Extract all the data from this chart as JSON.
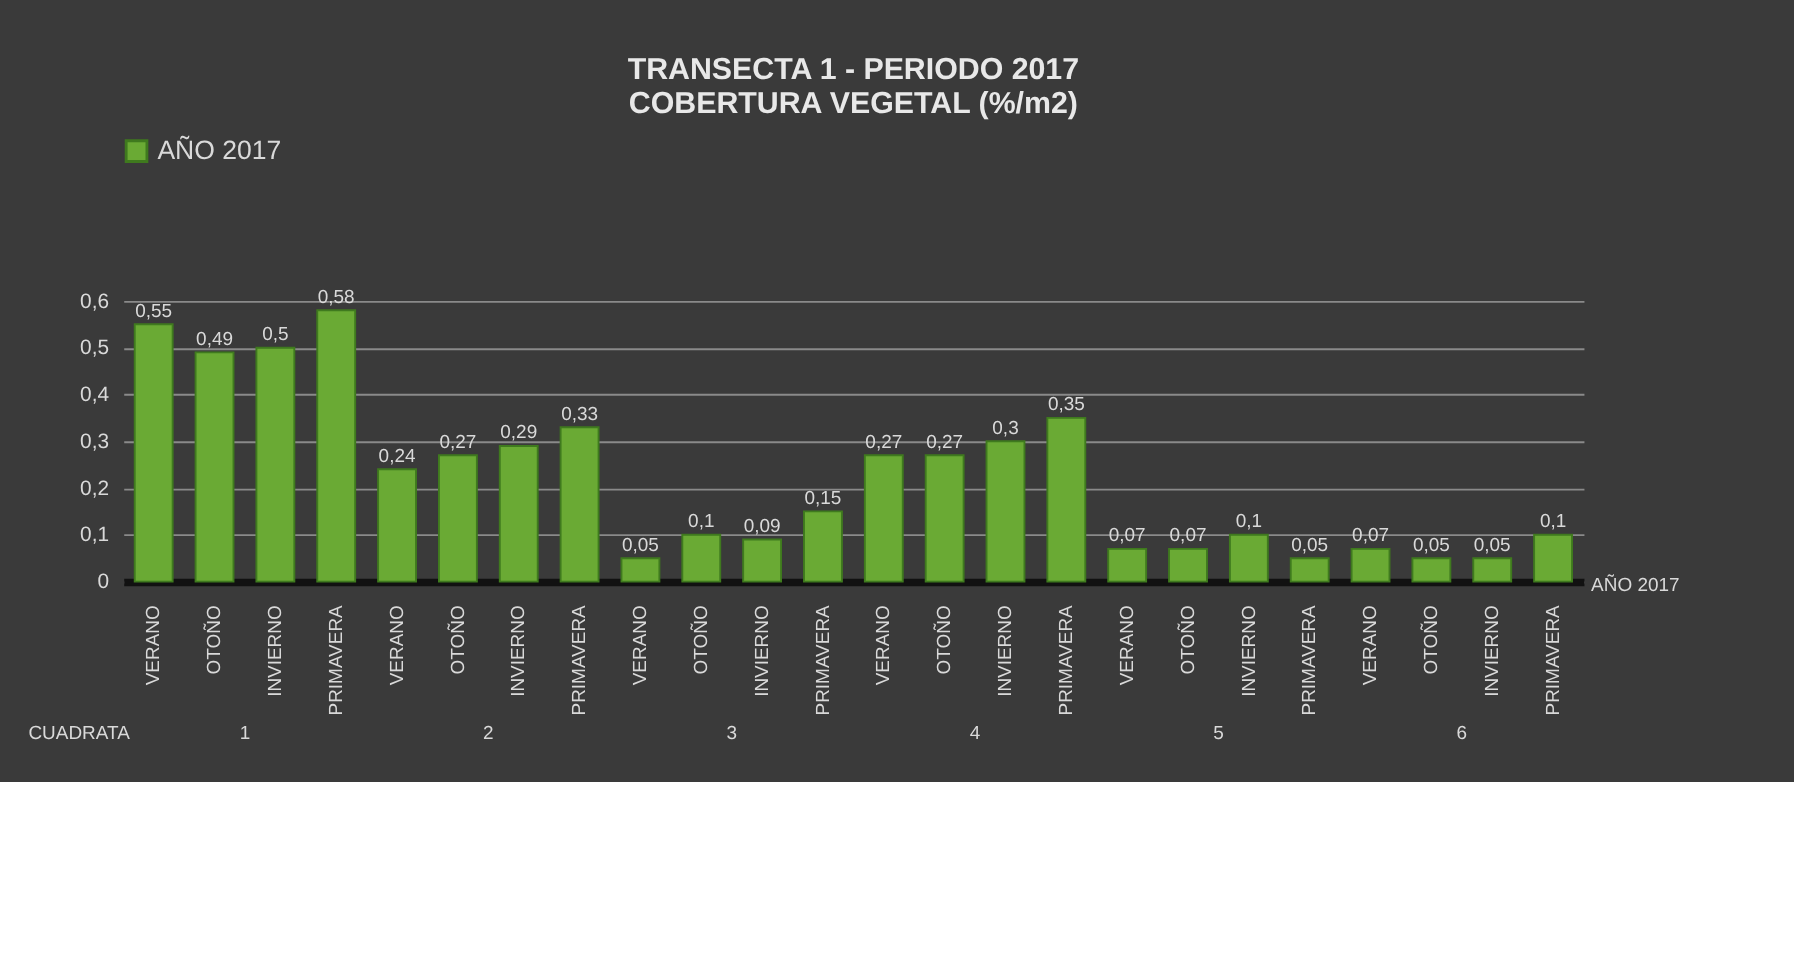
{
  "chart_data": {
    "type": "bar",
    "title": [
      "TRANSECTA 1 - PERIODO 2017",
      "COBERTURA VEGETAL (%/m2)"
    ],
    "xlabel": "CUADRATA",
    "categories": [
      "VERANO",
      "OTOÑO",
      "INVIERNO",
      "PRIMAVERA",
      "VERANO",
      "OTOÑO",
      "INVIERNO",
      "PRIMAVERA",
      "VERANO",
      "OTOÑO",
      "INVIERNO",
      "PRIMAVERA",
      "VERANO",
      "OTOÑO",
      "INVIERNO",
      "PRIMAVERA",
      "VERANO",
      "OTOÑO",
      "INVIERNO",
      "PRIMAVERA",
      "VERANO",
      "OTOÑO",
      "INVIERNO",
      "PRIMAVERA"
    ],
    "annotations": [
      "1",
      "2",
      "3",
      "4",
      "5",
      "6"
    ],
    "series": [
      {
        "name": "AÑO 2017",
        "color": "#6aaa34",
        "values": [
          0.55,
          0.49,
          0.5,
          0.58,
          0.24,
          0.27,
          0.29,
          0.33,
          0.05,
          0.1,
          0.09,
          0.15,
          0.27,
          0.27,
          0.3,
          0.35,
          0.07,
          0.07,
          0.1,
          0.05,
          0.07,
          0.05,
          0.05,
          0.1
        ],
        "value_labels": [
          "0,55",
          "0,49",
          "0,5",
          "0,58",
          "0,24",
          "0,27",
          "0,29",
          "0,33",
          "0,05",
          "0,1",
          "0,09",
          "0,15",
          "0,27",
          "0,27",
          "0,3",
          "0,35",
          "0,07",
          "0,07",
          "0,1",
          "0,05",
          "0,07",
          "0,05",
          "0,05",
          "0,1"
        ]
      }
    ],
    "ylim": [
      0,
      0.6
    ],
    "yticks": [
      {
        "value": 0,
        "label": "0"
      },
      {
        "value": 0.1,
        "label": "0,1"
      },
      {
        "value": 0.2,
        "label": "0,2"
      },
      {
        "value": 0.3,
        "label": "0,3"
      },
      {
        "value": 0.4,
        "label": "0,4"
      },
      {
        "value": 0.5,
        "label": "0,5"
      },
      {
        "value": 0.6,
        "label": "0,6"
      }
    ],
    "grid": "y",
    "legend": "top"
  }
}
